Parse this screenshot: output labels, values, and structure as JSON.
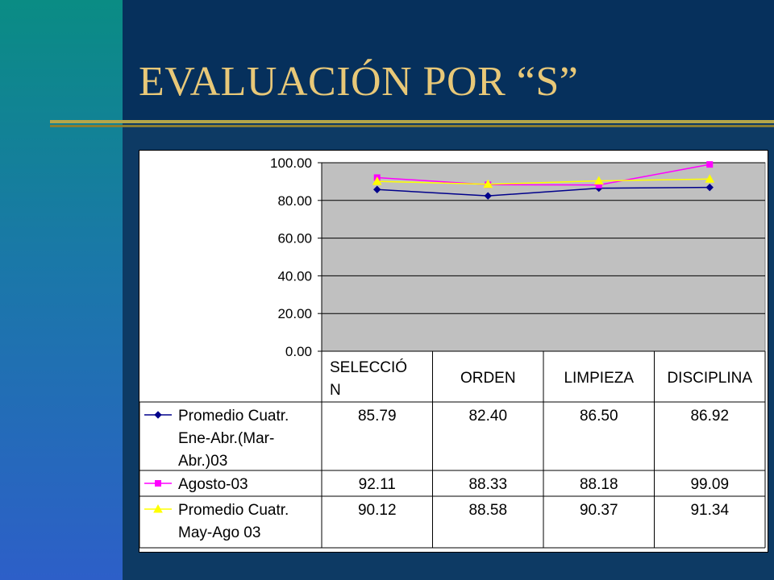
{
  "slide": {
    "title": "EVALUACIÓN POR “S”",
    "colors": {
      "background": "#0d3a64",
      "title": "#e8c878",
      "rule": "#b5a64a"
    }
  },
  "chart_data": {
    "type": "line",
    "title": "",
    "xlabel": "",
    "ylabel": "",
    "ylim": [
      0,
      100
    ],
    "yticks": [
      "0.00",
      "20.00",
      "40.00",
      "60.00",
      "80.00",
      "100.00"
    ],
    "grid": true,
    "legend": "data-table",
    "plot_background": "#c0c0c0",
    "categories": [
      [
        "SELECCIÓ",
        "N"
      ],
      [
        "ORDEN"
      ],
      [
        "LIMPIEZA"
      ],
      [
        "DISCIPLINA"
      ]
    ],
    "series": [
      {
        "name": [
          "Promedio Cuatr.",
          "Ene-Abr.(Mar-",
          "Abr.)03"
        ],
        "color": "#00008b",
        "marker": "diamond",
        "values": [
          85.79,
          82.4,
          86.5,
          86.92
        ],
        "labels": [
          "85.79",
          "82.40",
          "86.50",
          "86.92"
        ]
      },
      {
        "name": [
          "Agosto-03"
        ],
        "color": "#ff00ff",
        "marker": "square",
        "values": [
          92.11,
          88.33,
          88.18,
          99.09
        ],
        "labels": [
          "92.11",
          "88.33",
          "88.18",
          "99.09"
        ]
      },
      {
        "name": [
          "Promedio Cuatr.",
          "May-Ago 03"
        ],
        "color": "#ffff00",
        "marker": "triangle",
        "values": [
          90.12,
          88.58,
          90.37,
          91.34
        ],
        "labels": [
          "90.12",
          "88.58",
          "90.37",
          "91.34"
        ]
      }
    ]
  }
}
